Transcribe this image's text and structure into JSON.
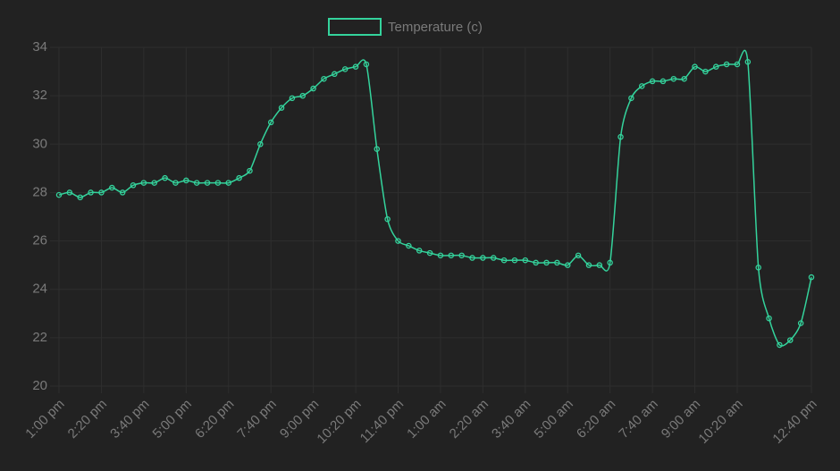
{
  "chart_data": {
    "type": "line",
    "categories": [
      "1:00 pm",
      null,
      null,
      null,
      "2:20 pm",
      null,
      null,
      null,
      "3:40 pm",
      null,
      null,
      null,
      "5:00 pm",
      null,
      null,
      null,
      "6:20 pm",
      null,
      null,
      null,
      "7:40 pm",
      null,
      null,
      null,
      "9:00 pm",
      null,
      null,
      null,
      "10:20 pm",
      null,
      null,
      null,
      "11:40 pm",
      null,
      null,
      null,
      "1:00 am",
      null,
      null,
      null,
      "2:20 am",
      null,
      null,
      null,
      "3:40 am",
      null,
      null,
      null,
      "5:00 am",
      null,
      null,
      null,
      "6:20 am",
      null,
      null,
      null,
      "7:40 am",
      null,
      null,
      null,
      "9:00 am",
      null,
      null,
      null,
      "10:20 am",
      null,
      null,
      null,
      null,
      null,
      null,
      "12:40 pm"
    ],
    "series": [
      {
        "name": "Temperature (c)",
        "color": "#34d39c",
        "values": [
          27.9,
          28.0,
          27.8,
          28.0,
          28.0,
          28.2,
          28.0,
          28.3,
          28.4,
          28.4,
          28.6,
          28.4,
          28.5,
          28.4,
          28.4,
          28.4,
          28.4,
          28.6,
          28.9,
          30.0,
          30.9,
          31.5,
          31.9,
          32.0,
          32.3,
          32.7,
          32.9,
          33.1,
          33.2,
          33.3,
          29.8,
          26.9,
          26.0,
          25.8,
          25.6,
          25.5,
          25.4,
          25.4,
          25.4,
          25.3,
          25.3,
          25.3,
          25.2,
          25.2,
          25.2,
          25.1,
          25.1,
          25.1,
          25.0,
          25.4,
          25.0,
          25.0,
          25.1,
          30.3,
          31.9,
          32.4,
          32.6,
          32.6,
          32.7,
          32.7,
          33.2,
          33.0,
          33.2,
          33.3,
          33.3,
          33.4,
          24.9,
          22.8,
          21.7,
          21.9,
          22.6,
          24.5
        ]
      }
    ],
    "ylim": [
      20,
      34
    ],
    "yticks": [
      20,
      22,
      24,
      26,
      28,
      30,
      32,
      34
    ],
    "grid": true,
    "legend": "top"
  }
}
